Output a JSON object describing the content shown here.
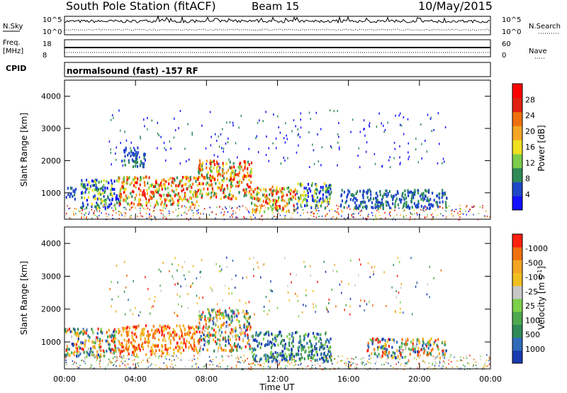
{
  "header": {
    "station": "South Pole Station (fitACF)",
    "beam": "Beam 15",
    "date": "10/May/2015"
  },
  "top_panel": {
    "left_label": "N.Sky",
    "right_label": "N.Search",
    "left_ticks": [
      "10^5",
      "10^0"
    ],
    "right_ticks": [
      "10^5",
      "10^0"
    ]
  },
  "freq_panel": {
    "left_label": "Freq.",
    "left_unit": "[MHz]",
    "left_ticks": [
      "18",
      "8"
    ],
    "right_label": "Nave",
    "right_ticks": [
      "60",
      "0"
    ]
  },
  "cpid_panel": {
    "label": "CPID",
    "program": "normalsound (fast) -157 RF"
  },
  "chart_data": [
    {
      "type": "heatmap",
      "panel": "power",
      "ylabel": "Slant Range [km]",
      "yticks": [
        "1000",
        "2000",
        "3000",
        "4000"
      ],
      "ylim": [
        180,
        4500
      ],
      "xticks": [
        "00:00",
        "04:00",
        "08:00",
        "12:00",
        "16:00",
        "20:00",
        "00:00"
      ],
      "xlim": [
        0,
        24
      ],
      "colorbar": {
        "label": "Power [dB]",
        "ticks": [
          "4",
          "8",
          "12",
          "16",
          "20",
          "24",
          "28"
        ],
        "colors": [
          "#1010ff",
          "#1e46c8",
          "#2e8b57",
          "#7ccd4a",
          "#f0e020",
          "#f5a623",
          "#f07010",
          "#e02010",
          "#ff0000"
        ]
      },
      "regions": [
        {
          "t": [
            0.0,
            0.6
          ],
          "range": [
            800,
            1200
          ],
          "level": "low"
        },
        {
          "t": [
            0.9,
            3.0
          ],
          "range": [
            500,
            1400
          ],
          "level": "medium"
        },
        {
          "t": [
            3.0,
            7.5
          ],
          "range": [
            600,
            1500
          ],
          "level": "high"
        },
        {
          "t": [
            3.2,
            4.5
          ],
          "range": [
            1800,
            2400
          ],
          "level": "low"
        },
        {
          "t": [
            7.5,
            10.5
          ],
          "range": [
            800,
            2000
          ],
          "level": "high"
        },
        {
          "t": [
            10.5,
            13.0
          ],
          "range": [
            400,
            1200
          ],
          "level": "high"
        },
        {
          "t": [
            13.0,
            15.0
          ],
          "range": [
            500,
            1300
          ],
          "level": "medium"
        },
        {
          "t": [
            15.5,
            21.5
          ],
          "range": [
            500,
            1100
          ],
          "level": "low"
        }
      ]
    },
    {
      "type": "heatmap",
      "panel": "velocity",
      "ylabel": "Slant Range [km]",
      "yticks": [
        "1000",
        "2000",
        "3000",
        "4000"
      ],
      "ylim": [
        180,
        4500
      ],
      "xticks": [
        "00:00",
        "04:00",
        "08:00",
        "12:00",
        "16:00",
        "20:00",
        "00:00"
      ],
      "xlim": [
        0,
        24
      ],
      "xlabel": "Time UT",
      "colorbar": {
        "label": "Velocity [m s^-1]",
        "ticks": [
          "1000",
          "500",
          "100",
          "25",
          "-25",
          "-100",
          "-500",
          "-1000"
        ],
        "colors": [
          "#1a3ab0",
          "#2e6bb8",
          "#2e8b57",
          "#4ea84e",
          "#7cd04a",
          "#c8c8c8",
          "#f0c020",
          "#f5a623",
          "#f07010",
          "#ff2010"
        ]
      },
      "regions": [
        {
          "t": [
            0.0,
            3.0
          ],
          "range": [
            500,
            1400
          ],
          "sign": "mixed"
        },
        {
          "t": [
            3.0,
            7.5
          ],
          "range": [
            600,
            1500
          ],
          "sign": "negative"
        },
        {
          "t": [
            7.5,
            10.5
          ],
          "range": [
            700,
            2000
          ],
          "sign": "mixed"
        },
        {
          "t": [
            10.5,
            15.0
          ],
          "range": [
            400,
            1300
          ],
          "sign": "positive"
        },
        {
          "t": [
            17.0,
            21.5
          ],
          "range": [
            500,
            1100
          ],
          "sign": "mixed"
        }
      ]
    }
  ]
}
